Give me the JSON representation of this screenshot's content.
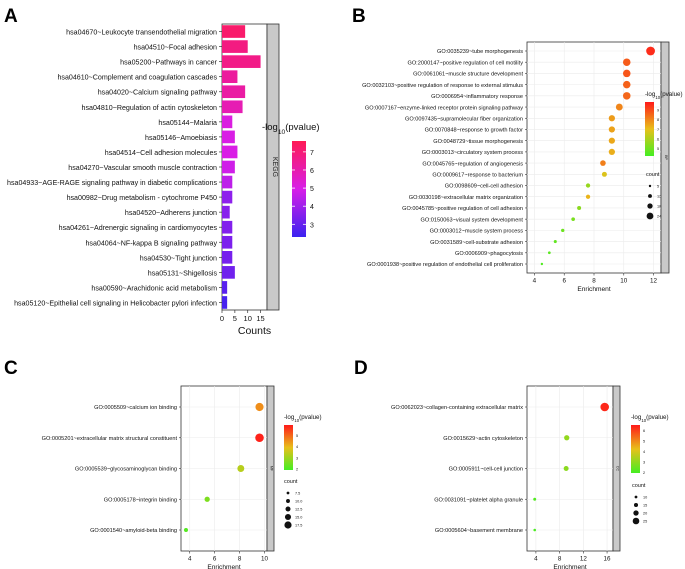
{
  "figure": {
    "colors": {
      "low": "#3b22f0",
      "mid": "#d81ee8",
      "high": "#ff1a55",
      "b_low": "#44ee22",
      "b_mid": "#e8c01a",
      "b_high": "#ff1a1a",
      "strip": "#c9c9c9",
      "panel_bg": "#ffffff",
      "grid": "#ebebeb"
    }
  },
  "chart_data": [
    {
      "panel_label": "A",
      "type": "bar",
      "orientation": "horizontal",
      "categories": [
        "hsa04670~Leukocyte transendothelial migration",
        "hsa04510~Focal adhesion",
        "hsa05200~Pathways in cancer",
        "hsa04610~Complement and coagulation cascades",
        "hsa04020~Calcium signaling pathway",
        "hsa04810~Regulation of actin cytoskeleton",
        "hsa05144~Malaria",
        "hsa05146~Amoebiasis",
        "hsa04514~Cell adhesion molecules",
        "hsa04270~Vascular smooth muscle contraction",
        "hsa04933~AGE-RAGE signaling pathway in diabetic complications",
        "hsa00982~Drug metabolism - cytochrome P450",
        "hsa04520~Adherens junction",
        "hsa04261~Adrenergic signaling in cardiomyocytes",
        "hsa04064~NF-kappa B signaling pathway",
        "hsa04530~Tight junction",
        "hsa05131~Shigellosis",
        "hsa00590~Arachidonic acid metabolism",
        "hsa05120~Epithelial cell signaling in Helicobacter pylori infection"
      ],
      "values": [
        9,
        10,
        15,
        6,
        9,
        8,
        4,
        5,
        6,
        5,
        4,
        4,
        3,
        4,
        4,
        4,
        5,
        2,
        2
      ],
      "color_values": [
        7.2,
        6.8,
        6.7,
        6.3,
        6.2,
        5.9,
        5.1,
        5.0,
        5.0,
        4.8,
        4.5,
        3.7,
        3.6,
        3.5,
        3.4,
        3.3,
        3.2,
        2.8,
        2.5
      ],
      "xlabel": "Counts",
      "xlim": [
        0,
        17.5
      ],
      "xticks": [
        "0",
        "5",
        "10",
        "15"
      ],
      "strip_label": "KEGG",
      "legend": {
        "title_prefix": "-log",
        "title_sub": "10",
        "title_suffix": "(pvalue)",
        "ticks": [
          "7",
          "6",
          "5",
          "4",
          "3"
        ],
        "range": [
          2.3,
          7.6
        ]
      }
    },
    {
      "panel_label": "B",
      "type": "scatter",
      "categories": [
        "GO:0035239~tube morphogenesis",
        "GO:2000147~positive regulation of cell motility",
        "GO:0061061~muscle structure development",
        "GO:0032103~positive regulation of response to external stimulus",
        "GO:0006954~inflammatory response",
        "GO:0007167~enzyme-linked receptor protein signaling pathway",
        "GO:0097435~supramolecular fiber organization",
        "GO:0070848~response to growth factor",
        "GO:0048729~tissue morphogenesis",
        "GO:0003013~circulatory system process",
        "GO:0045765~regulation of angiogenesis",
        "GO:0009617~response to bacterium",
        "GO:0098609~cell-cell adhesion",
        "GO:0030198~extracellular matrix organization",
        "GO:0045785~positive regulation of cell adhesion",
        "GO:0150063~visual system development",
        "GO:0003012~muscle system process",
        "GO:0031589~cell-substrate adhesion",
        "GO:0006909~phagocytosis",
        "GO:0001938~positive regulation of endothelial cell proliferation"
      ],
      "x": [
        11.8,
        10.2,
        10.2,
        10.2,
        10.2,
        9.7,
        9.2,
        9.2,
        9.2,
        9.2,
        8.6,
        8.7,
        7.6,
        7.6,
        7.0,
        6.6,
        5.9,
        5.4,
        5.0,
        4.5
      ],
      "color_values": [
        9.5,
        8.7,
        8.8,
        8.6,
        8.5,
        8.0,
        7.6,
        7.5,
        7.4,
        7.3,
        8.1,
        6.8,
        5.6,
        7.2,
        5.4,
        5.1,
        4.9,
        4.7,
        4.6,
        4.4
      ],
      "counts": [
        24,
        20,
        20,
        20,
        20,
        18,
        16,
        16,
        16,
        16,
        14,
        12,
        10,
        10,
        9,
        8,
        7,
        6,
        5,
        4
      ],
      "xlabel": "Enrichment",
      "xlim": [
        3.5,
        12.5
      ],
      "xticks": [
        "4",
        "6",
        "8",
        "10",
        "12"
      ],
      "strip_label": "BP",
      "legend": {
        "title_prefix": "-log",
        "title_sub": "10",
        "title_suffix": "(pvalue)",
        "ticks": [
          "9",
          "8",
          "7",
          "6",
          "5"
        ],
        "range": [
          4.2,
          9.8
        ]
      },
      "size_legend": {
        "title": "count",
        "labels": [
          "5",
          "12",
          "18",
          "24"
        ]
      }
    },
    {
      "panel_label": "C",
      "type": "scatter",
      "categories": [
        "GO:0005509~calcium ion binding",
        "GO:0005201~extracellular matrix structural constituent",
        "GO:0005539~glycosaminoglycan binding",
        "GO:0005178~integrin binding",
        "GO:0001540~amyloid-beta binding"
      ],
      "x": [
        9.6,
        9.6,
        8.1,
        5.4,
        3.7
      ],
      "color_values": [
        4.5,
        5.8,
        3.3,
        2.6,
        2.1
      ],
      "counts": [
        17,
        18,
        14,
        10,
        7
      ],
      "xlabel": "Enrichment",
      "xlim": [
        3.3,
        10.2
      ],
      "xticks": [
        "4",
        "6",
        "8",
        "10"
      ],
      "strip_label": "MF",
      "legend": {
        "title_prefix": "-log",
        "title_sub": "10",
        "title_suffix": "(pvalue)",
        "ticks": [
          "5",
          "4",
          "3",
          "2"
        ],
        "range": [
          1.9,
          5.9
        ]
      },
      "size_legend": {
        "title": "count",
        "labels": [
          "7.5",
          "10.0",
          "12.5",
          "15.0",
          "17.5"
        ]
      }
    },
    {
      "panel_label": "D",
      "type": "scatter",
      "categories": [
        "GO:0062023~collagen-containing extracellular matrix",
        "GO:0015629~actin cytoskeleton",
        "GO:0005911~cell-cell junction",
        "GO:0031091~platelet alpha granule",
        "GO:0005604~basement membrane"
      ],
      "x": [
        15.6,
        9.2,
        9.1,
        3.8,
        3.8
      ],
      "color_values": [
        6.3,
        3.0,
        2.9,
        2.1,
        2.0
      ],
      "counts": [
        27,
        17,
        16,
        10,
        9
      ],
      "xlabel": "Enrichment",
      "xlim": [
        2.5,
        17
      ],
      "xticks": [
        "4",
        "8",
        "12",
        "16"
      ],
      "strip_label": "CC",
      "legend": {
        "title_prefix": "-log",
        "title_sub": "10",
        "title_suffix": "(pvalue)",
        "ticks": [
          "6",
          "5",
          "4",
          "3",
          "2"
        ],
        "range": [
          1.9,
          6.5
        ]
      },
      "size_legend": {
        "title": "count",
        "labels": [
          "10",
          "15",
          "20",
          "25"
        ]
      }
    }
  ]
}
